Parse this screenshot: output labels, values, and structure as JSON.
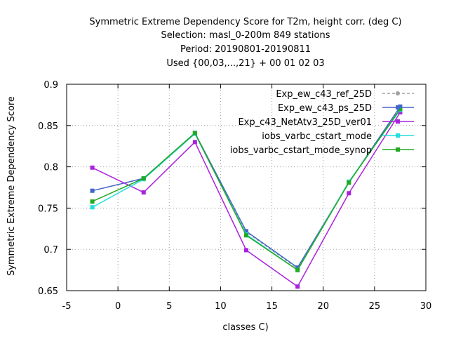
{
  "chart_data": {
    "type": "line",
    "title_lines": [
      "Symmetric Extreme Dependency Score  for T2m, height corr. (deg C)",
      "Selection: masl_0-200m    849 stations",
      "Period: 20190801-20190811",
      "Used {00,03,...,21} + 00 01 02 03"
    ],
    "xlabel": "classes C)",
    "ylabel": "Symmetric Extreme Dependency Score",
    "xlim": [
      -5,
      30
    ],
    "ylim": [
      0.65,
      0.9
    ],
    "xticks": [
      -5,
      0,
      5,
      10,
      15,
      20,
      25,
      30
    ],
    "yticks": [
      0.65,
      0.7,
      0.75,
      0.8,
      0.85,
      0.9
    ],
    "xtick_labels": [
      "-5",
      "0",
      "5",
      "10",
      "15",
      "20",
      "25",
      "30"
    ],
    "ytick_labels": [
      "0.65",
      "0.7",
      "0.75",
      "0.8",
      "0.85",
      "0.9"
    ],
    "grid": true,
    "legend_position": "top-right",
    "series": [
      {
        "name": "Exp_ew_c43_ref_25D",
        "color": "#a0a0a0",
        "dashed": true,
        "x": [
          -2.5,
          2.5,
          7.5,
          12.5,
          17.5,
          22.5,
          27.5
        ],
        "values": [
          0.771,
          0.786,
          0.841,
          0.721,
          0.677,
          0.781,
          0.872
        ]
      },
      {
        "name": "Exp_ew_c43_ps_25D",
        "color": "#4466cc",
        "dashed": false,
        "x": [
          -2.5,
          2.5,
          7.5,
          12.5,
          17.5,
          22.5,
          27.5
        ],
        "values": [
          0.771,
          0.786,
          0.841,
          0.722,
          0.678,
          0.781,
          0.873
        ]
      },
      {
        "name": "Exp_c43_NetAtv3_25D_ver01",
        "color": "#aa22dd",
        "dashed": false,
        "x": [
          -2.5,
          2.5,
          7.5,
          12.5,
          17.5,
          22.5,
          27.5
        ],
        "values": [
          0.799,
          0.769,
          0.83,
          0.699,
          0.655,
          0.768,
          0.866
        ]
      },
      {
        "name": "iobs_varbc_cstart_mode",
        "color": "#22dddd",
        "dashed": false,
        "x": [
          -2.5,
          2.5,
          7.5,
          12.5,
          17.5,
          22.5,
          27.5
        ],
        "values": [
          0.751,
          0.785,
          0.84,
          0.718,
          0.675,
          0.782,
          0.869
        ]
      },
      {
        "name": "iobs_varbc_cstart_mode_synop",
        "color": "#22aa22",
        "dashed": false,
        "x": [
          -2.5,
          2.5,
          7.5,
          12.5,
          17.5,
          22.5,
          27.5
        ],
        "values": [
          0.758,
          0.786,
          0.841,
          0.717,
          0.675,
          0.781,
          0.87
        ]
      }
    ]
  }
}
